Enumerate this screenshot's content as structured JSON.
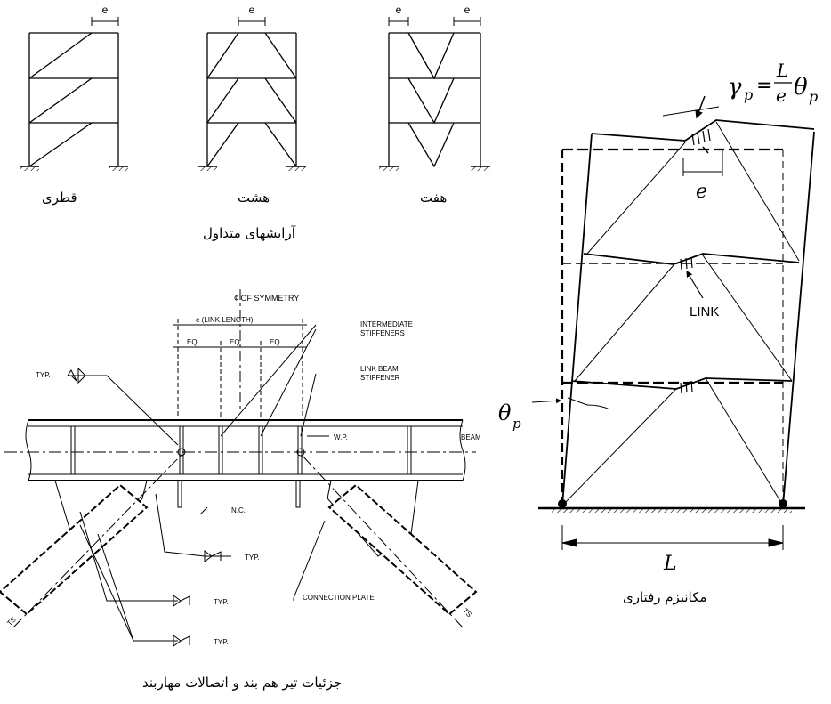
{
  "frames": {
    "eccentricity_symbol": "e",
    "captions": {
      "diagonal": "قطری",
      "chevron": "هشت",
      "v": "هفت"
    },
    "title": "آرایشهای متداول"
  },
  "detail": {
    "centerline": "¢ OF SYMMETRY",
    "link_length": "e (LINK LENGTH)",
    "eq": "EQ.",
    "intermediate_stiffeners": [
      "INTERMEDIATE",
      "STIFFENERS"
    ],
    "link_beam_stiffener": [
      "LINK BEAM",
      "STIFFENER"
    ],
    "wp": "W.P.",
    "beam": "BEAM",
    "nc": "N.C.",
    "typ_a": "TYP.",
    "typ_b": "TYP.",
    "typ_c": "TYP.",
    "typ_d": "TYP.",
    "typ_e": "TYP.",
    "connection_plate": "CONNECTION PLATE",
    "ts": "TS",
    "title": "جزئیات تیر هم بند و اتصالات مهاربند"
  },
  "mechanism": {
    "formula_gamma": "γ",
    "formula_p": "p",
    "formula_L": "L",
    "formula_e": "e",
    "formula_theta": "θ",
    "e_label": "e",
    "link": "LINK",
    "theta_p": "θ",
    "theta_sub": "p",
    "L_label": "L",
    "title": "مکانیزم رفتاری"
  }
}
